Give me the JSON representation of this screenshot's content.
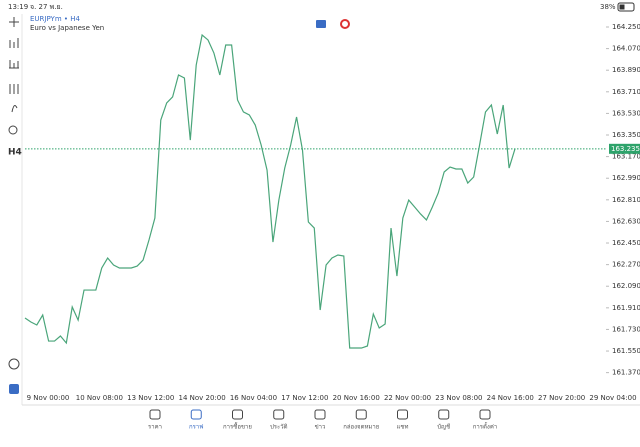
{
  "status_bar": {
    "time": "13:19",
    "date": "จ. 27 พ.ย.",
    "battery": "38%"
  },
  "toolbar": {
    "timeframe": "H4"
  },
  "chart_data": {
    "type": "line",
    "title": "EURJPYm • H4",
    "subtitle": "Euro vs Japanese Yen",
    "color": "#4aa57a",
    "values": [
      161.825,
      161.792,
      161.767,
      161.85,
      161.633,
      161.633,
      161.675,
      161.617,
      161.917,
      161.808,
      162.058,
      162.058,
      162.058,
      162.242,
      162.325,
      162.267,
      162.242,
      162.242,
      162.242,
      162.258,
      162.308,
      162.475,
      162.658,
      163.475,
      163.617,
      163.667,
      163.85,
      163.825,
      163.308,
      163.933,
      164.183,
      164.142,
      164.033,
      163.85,
      164.1,
      164.1,
      163.642,
      163.542,
      163.517,
      163.433,
      163.267,
      163.058,
      162.458,
      162.808,
      163.075,
      163.267,
      163.5,
      163.225,
      162.625,
      162.575,
      161.892,
      162.267,
      162.325,
      162.35,
      162.342,
      161.575,
      161.575,
      161.575,
      161.592,
      161.858,
      161.742,
      161.775,
      162.575,
      162.175,
      162.658,
      162.808,
      162.75,
      162.692,
      162.642,
      162.75,
      162.867,
      163.042,
      163.083,
      163.067,
      163.067,
      162.95,
      163.0,
      163.267,
      163.542,
      163.6,
      163.358,
      163.6,
      163.075,
      163.235
    ],
    "ylim": [
      161.242,
      164.35
    ],
    "yticks": [
      {
        "value": 164.25,
        "label": "164.250"
      },
      {
        "value": 164.07,
        "label": "164.070"
      },
      {
        "value": 163.89,
        "label": "163.890"
      },
      {
        "value": 163.71,
        "label": "163.710"
      },
      {
        "value": 163.53,
        "label": "163.530"
      },
      {
        "value": 163.35,
        "label": "163.350"
      },
      {
        "value": 163.17,
        "label": "163.170"
      },
      {
        "value": 162.99,
        "label": "162.990"
      },
      {
        "value": 162.81,
        "label": "162.810"
      },
      {
        "value": 162.63,
        "label": "162.630"
      },
      {
        "value": 162.45,
        "label": "162.450"
      },
      {
        "value": 162.27,
        "label": "162.270"
      },
      {
        "value": 162.09,
        "label": "162.090"
      },
      {
        "value": 161.91,
        "label": "161.910"
      },
      {
        "value": 161.73,
        "label": "161.730"
      },
      {
        "value": 161.55,
        "label": "161.550"
      },
      {
        "value": 161.37,
        "label": "161.370"
      }
    ],
    "xtick_labels": [
      "9 Nov 00:00",
      "10 Nov 08:00",
      "13 Nov 12:00",
      "14 Nov 20:00",
      "16 Nov 04:00",
      "17 Nov 12:00",
      "20 Nov 16:00",
      "22 Nov 00:00",
      "23 Nov 08:00",
      "24 Nov 16:00",
      "27 Nov 20:00",
      "29 Nov 04:00"
    ],
    "current_price": 163.235,
    "current_color": "#2ea36b"
  },
  "nav": [
    "ราคา",
    "กราฟ",
    "การซื้อขาย",
    "ประวัติ",
    "ข่าว",
    "กล่องจดหมาย",
    "แชท",
    "บัญชี",
    "การตั้งค่า"
  ]
}
